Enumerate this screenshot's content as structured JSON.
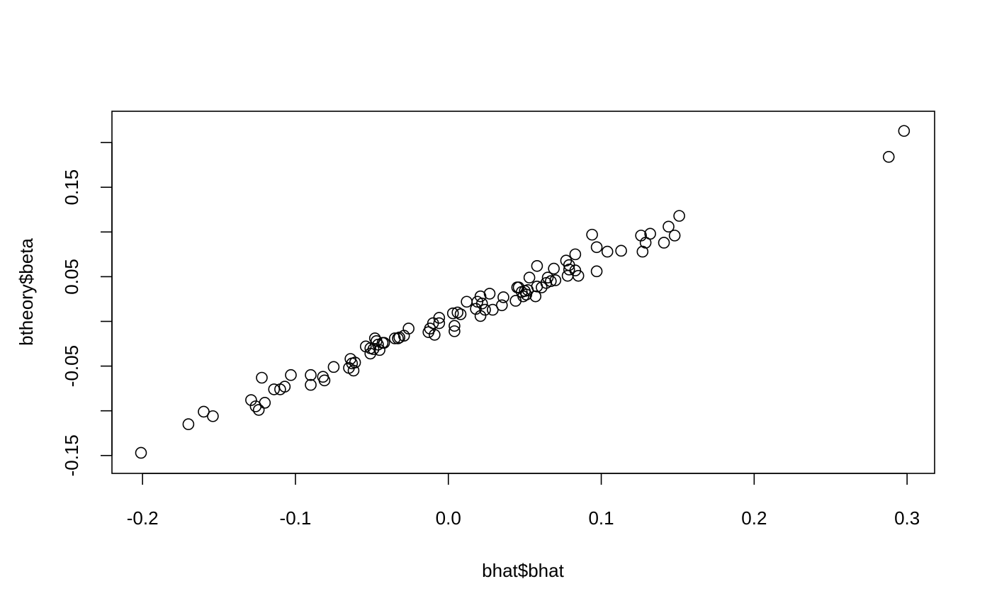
{
  "chart_data": {
    "type": "scatter",
    "title": "",
    "xlabel": "bhat$bhat",
    "ylabel": "btheory$beta",
    "xlim": [
      -0.22,
      0.318
    ],
    "ylim": [
      -0.17,
      0.235
    ],
    "x_ticks": [
      {
        "value": -0.2,
        "label": "-0.2"
      },
      {
        "value": -0.1,
        "label": "-0.1"
      },
      {
        "value": 0.0,
        "label": "0.0"
      },
      {
        "value": 0.1,
        "label": "0.1"
      },
      {
        "value": 0.2,
        "label": "0.2"
      },
      {
        "value": 0.3,
        "label": "0.3"
      }
    ],
    "y_ticks": [
      {
        "value": -0.15,
        "label": "-0.15"
      },
      {
        "value": -0.1,
        "label": ""
      },
      {
        "value": -0.05,
        "label": "-0.05"
      },
      {
        "value": 0.0,
        "label": ""
      },
      {
        "value": 0.05,
        "label": "0.05"
      },
      {
        "value": 0.1,
        "label": ""
      },
      {
        "value": 0.15,
        "label": "0.15"
      },
      {
        "value": 0.2,
        "label": ""
      }
    ],
    "grid": false,
    "legend": "none",
    "marker": "open-circle",
    "series": [
      {
        "points": [
          [
            -0.201,
            -0.147
          ],
          [
            -0.17,
            -0.115
          ],
          [
            -0.16,
            -0.101
          ],
          [
            -0.154,
            -0.106
          ],
          [
            -0.129,
            -0.088
          ],
          [
            -0.126,
            -0.095
          ],
          [
            -0.124,
            -0.099
          ],
          [
            -0.122,
            -0.063
          ],
          [
            -0.12,
            -0.091
          ],
          [
            -0.114,
            -0.076
          ],
          [
            -0.11,
            -0.076
          ],
          [
            -0.107,
            -0.073
          ],
          [
            -0.103,
            -0.06
          ],
          [
            -0.09,
            -0.06
          ],
          [
            -0.09,
            -0.071
          ],
          [
            -0.082,
            -0.062
          ],
          [
            -0.081,
            -0.066
          ],
          [
            -0.075,
            -0.051
          ],
          [
            -0.065,
            -0.052
          ],
          [
            -0.064,
            -0.042
          ],
          [
            -0.063,
            -0.047
          ],
          [
            -0.062,
            -0.055
          ],
          [
            -0.061,
            -0.046
          ],
          [
            -0.054,
            -0.028
          ],
          [
            -0.051,
            -0.036
          ],
          [
            -0.051,
            -0.03
          ],
          [
            -0.049,
            -0.031
          ],
          [
            -0.048,
            -0.019
          ],
          [
            -0.047,
            -0.022
          ],
          [
            -0.046,
            -0.026
          ],
          [
            -0.045,
            -0.032
          ],
          [
            -0.043,
            -0.024
          ],
          [
            -0.042,
            -0.024
          ],
          [
            -0.035,
            -0.019
          ],
          [
            -0.033,
            -0.019
          ],
          [
            -0.032,
            -0.018
          ],
          [
            -0.029,
            -0.016
          ],
          [
            -0.026,
            -0.008
          ],
          [
            -0.013,
            -0.012
          ],
          [
            -0.012,
            -0.008
          ],
          [
            -0.01,
            -0.002
          ],
          [
            -0.009,
            -0.015
          ],
          [
            -0.006,
            -0.002
          ],
          [
            -0.006,
            0.004
          ],
          [
            0.003,
            0.009
          ],
          [
            0.004,
            -0.011
          ],
          [
            0.004,
            -0.005
          ],
          [
            0.006,
            0.01
          ],
          [
            0.008,
            0.008
          ],
          [
            0.012,
            0.022
          ],
          [
            0.018,
            0.014
          ],
          [
            0.019,
            0.022
          ],
          [
            0.021,
            0.028
          ],
          [
            0.021,
            0.006
          ],
          [
            0.022,
            0.02
          ],
          [
            0.024,
            0.013
          ],
          [
            0.027,
            0.031
          ],
          [
            0.029,
            0.013
          ],
          [
            0.035,
            0.018
          ],
          [
            0.036,
            0.027
          ],
          [
            0.044,
            0.023
          ],
          [
            0.045,
            0.038
          ],
          [
            0.046,
            0.038
          ],
          [
            0.048,
            0.033
          ],
          [
            0.049,
            0.028
          ],
          [
            0.05,
            0.034
          ],
          [
            0.051,
            0.03
          ],
          [
            0.052,
            0.035
          ],
          [
            0.053,
            0.049
          ],
          [
            0.057,
            0.028
          ],
          [
            0.058,
            0.039
          ],
          [
            0.058,
            0.062
          ],
          [
            0.061,
            0.038
          ],
          [
            0.064,
            0.043
          ],
          [
            0.065,
            0.049
          ],
          [
            0.067,
            0.045
          ],
          [
            0.069,
            0.059
          ],
          [
            0.07,
            0.046
          ],
          [
            0.077,
            0.068
          ],
          [
            0.078,
            0.051
          ],
          [
            0.079,
            0.058
          ],
          [
            0.079,
            0.063
          ],
          [
            0.083,
            0.075
          ],
          [
            0.083,
            0.057
          ],
          [
            0.085,
            0.051
          ],
          [
            0.094,
            0.097
          ],
          [
            0.097,
            0.083
          ],
          [
            0.097,
            0.056
          ],
          [
            0.104,
            0.078
          ],
          [
            0.113,
            0.079
          ],
          [
            0.126,
            0.096
          ],
          [
            0.127,
            0.078
          ],
          [
            0.129,
            0.088
          ],
          [
            0.132,
            0.098
          ],
          [
            0.141,
            0.088
          ],
          [
            0.144,
            0.106
          ],
          [
            0.148,
            0.096
          ],
          [
            0.151,
            0.118
          ],
          [
            0.288,
            0.184
          ],
          [
            0.298,
            0.213
          ]
        ]
      }
    ]
  }
}
